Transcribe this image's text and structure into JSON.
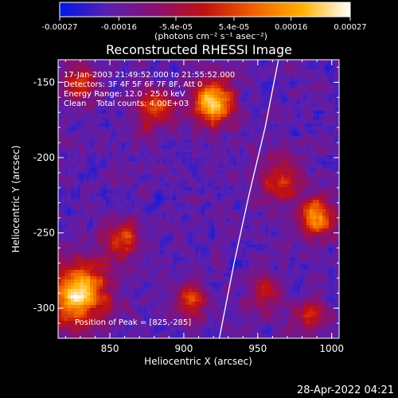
{
  "chart_data": {
    "type": "heatmap",
    "title": "Reconstructed RHESSI Image",
    "xlabel": "Heliocentric X (arcsec)",
    "ylabel": "Heliocentric Y (arcsec)",
    "xlim": [
      815,
      1005
    ],
    "ylim": [
      -320,
      -135
    ],
    "x_ticks": [
      "850",
      "900",
      "950",
      "1000"
    ],
    "x_tick_values": [
      850,
      900,
      950,
      1000
    ],
    "y_ticks": [
      "-150",
      "-200",
      "-250",
      "-300"
    ],
    "y_tick_values": [
      -150,
      -200,
      -250,
      -300
    ],
    "colorbar": {
      "ticks": [
        "-0.00027",
        "-0.00016",
        "-5.4e-05",
        "5.4e-05",
        "0.00016",
        "0.00027"
      ],
      "tick_values": [
        -0.00027,
        -0.00016,
        -5.4e-05,
        5.4e-05,
        0.00016,
        0.00027
      ],
      "range": [
        -0.00027,
        0.00027
      ],
      "unit_label": "(photons cm⁻² s⁻¹ asec⁻²)",
      "colors": [
        "#0018e8",
        "#5a1fb0",
        "#8a1070",
        "#c21010",
        "#f06000",
        "#ffb000",
        "#ffffff"
      ]
    },
    "annotations": {
      "time": "17-Jan-2003 21:49:52.000 to 21:55:52.000",
      "detectors": "Detectors: 3F 4F 5F 6F 7F 8F, Att 0",
      "energy": "Energy Range: 12.0 - 25.0 keV",
      "algorithm": "Clean    Total counts: 4.00E+03",
      "peak": "Position of Peak = [825,-285]"
    },
    "peak": {
      "x": 825,
      "y": -285
    },
    "limb": [
      {
        "x": 964,
        "y": -135
      },
      {
        "x": 955,
        "y": -180
      },
      {
        "x": 944,
        "y": -225
      },
      {
        "x": 934,
        "y": -270
      },
      {
        "x": 924,
        "y": -320
      }
    ],
    "grid": false,
    "sources": [
      {
        "x": 828,
        "y": -290,
        "amp": 1.0,
        "sigma": 14
      },
      {
        "x": 920,
        "y": -163,
        "amp": 0.95,
        "sigma": 10
      },
      {
        "x": 880,
        "y": -168,
        "amp": 0.55,
        "sigma": 9
      },
      {
        "x": 990,
        "y": -240,
        "amp": 0.75,
        "sigma": 9
      },
      {
        "x": 858,
        "y": -255,
        "amp": 0.55,
        "sigma": 9
      },
      {
        "x": 905,
        "y": -295,
        "amp": 0.55,
        "sigma": 8
      },
      {
        "x": 965,
        "y": -215,
        "amp": 0.5,
        "sigma": 10
      },
      {
        "x": 985,
        "y": -305,
        "amp": 0.45,
        "sigma": 8
      },
      {
        "x": 830,
        "y": -150,
        "amp": 0.45,
        "sigma": 9
      },
      {
        "x": 955,
        "y": -290,
        "amp": 0.4,
        "sigma": 8
      }
    ]
  },
  "timestamp": "28-Apr-2022 04:21"
}
